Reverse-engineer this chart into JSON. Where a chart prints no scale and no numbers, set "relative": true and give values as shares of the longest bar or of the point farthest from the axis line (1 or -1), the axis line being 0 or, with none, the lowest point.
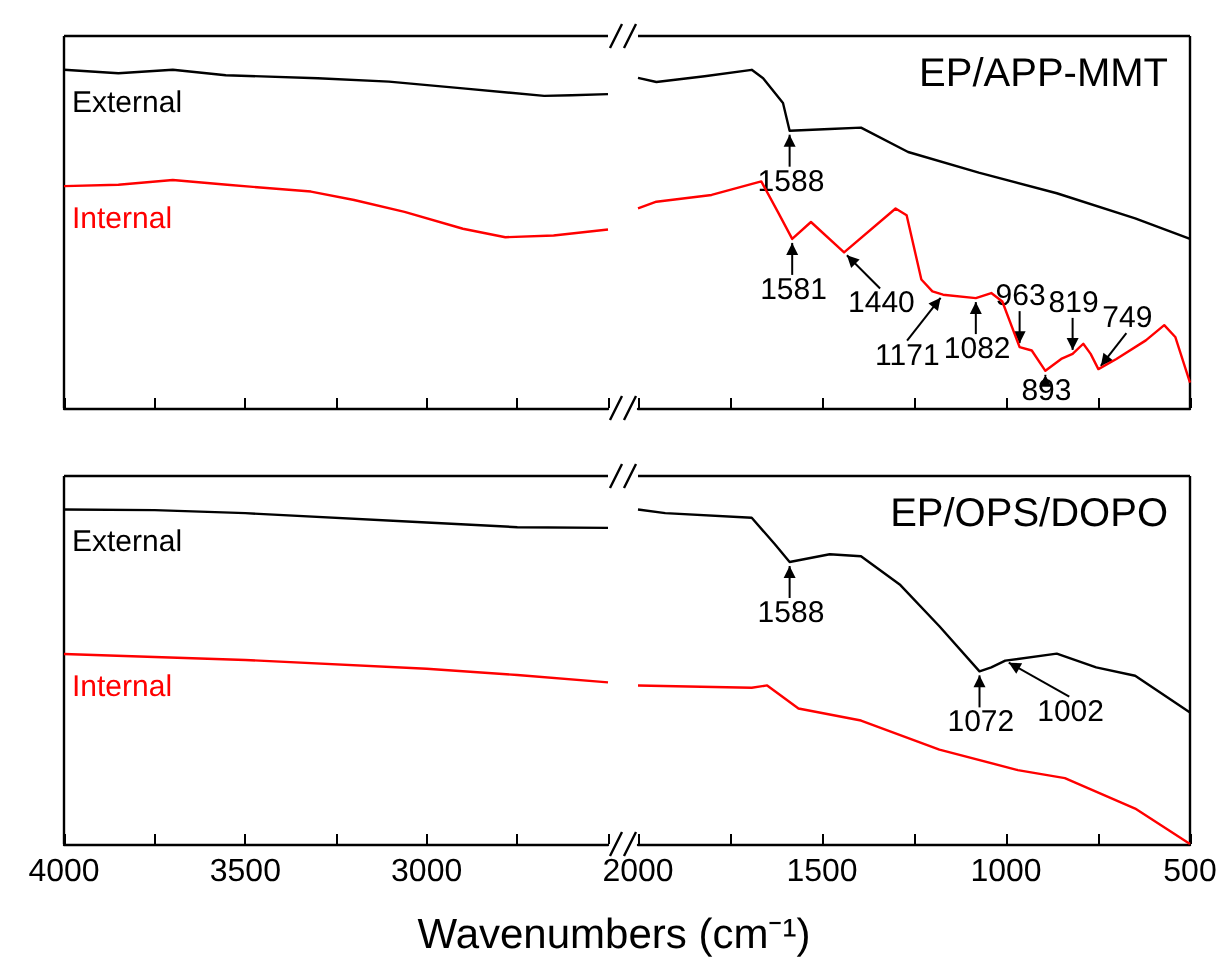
{
  "chart_data": [
    {
      "type": "line",
      "relative": true,
      "marker": "none",
      "line_style": "solid",
      "tick_labels": false,
      "xlim": [
        4000,
        2500
      ],
      "xticks": [
        4000,
        {
          "value": 3750,
          "label": null
        },
        3500,
        {
          "value": 3250,
          "label": null
        },
        3000,
        {
          "value": 2750,
          "label": null
        },
        {
          "value": 2500,
          "label": null
        }
      ],
      "series": [
        {
          "name": "External",
          "color": "#000000",
          "x": [
            4000,
            3850,
            3700,
            3554,
            3300,
            3104,
            2900,
            2676,
            2600,
            2500
          ],
          "values": [
            1.0,
            0.99,
            1.0,
            0.984,
            0.975,
            0.965,
            0.945,
            0.923,
            0.925,
            0.928
          ]
        },
        {
          "name": "Internal",
          "color": "#ff0000",
          "x": [
            4000,
            3850,
            3700,
            3550,
            3319,
            3200,
            3061,
            2900,
            2783,
            2650,
            2500
          ],
          "values": [
            0.656,
            0.66,
            0.674,
            0.66,
            0.64,
            0.615,
            0.58,
            0.53,
            0.505,
            0.51,
            0.528
          ]
        }
      ]
    },
    {
      "type": "line",
      "relative": true,
      "marker": "none",
      "line_style": "solid",
      "tick_labels": false,
      "title": "EP/APP-MMT",
      "xlim": [
        2000,
        500
      ],
      "xticks": [
        2000,
        {
          "value": 1750,
          "label": null
        },
        1500,
        {
          "value": 1250,
          "label": null
        },
        1000,
        {
          "value": 750,
          "label": null
        },
        500
      ],
      "series": [
        {
          "color": "#000000",
          "x": [
            2000,
            1950,
            1819,
            1691,
            1660,
            1606,
            1588,
            1479,
            1394,
            1266,
            1074,
            862,
            649,
            500
          ],
          "values": [
            0.976,
            0.964,
            0.981,
            1.0,
            0.975,
            0.902,
            0.82,
            0.825,
            0.829,
            0.757,
            0.696,
            0.635,
            0.561,
            0.5
          ]
        },
        {
          "color": "#ff0000",
          "x": [
            2000,
            1950,
            1800,
            1665,
            1620,
            1581,
            1530,
            1440,
            1300,
            1270,
            1230,
            1200,
            1171,
            1082,
            1040,
            1010,
            963,
            930,
            893,
            850,
            819,
            790,
            770,
            749,
            700,
            620,
            570,
            540,
            500
          ],
          "values": [
            0.59,
            0.61,
            0.63,
            0.67,
            0.58,
            0.5,
            0.55,
            0.46,
            0.59,
            0.57,
            0.38,
            0.345,
            0.335,
            0.325,
            0.34,
            0.315,
            0.18,
            0.17,
            0.11,
            0.145,
            0.16,
            0.19,
            0.16,
            0.115,
            0.145,
            0.2,
            0.245,
            0.21,
            0.075
          ]
        }
      ],
      "annotations": [
        {
          "text": "1588",
          "x": 1588,
          "y": 0.82
        },
        {
          "text": "1581",
          "x": 1581,
          "y": 0.5
        },
        {
          "text": "1440",
          "x": 1440,
          "y": 0.46
        },
        {
          "text": "1171",
          "x": 1171,
          "y": 0.335
        },
        {
          "text": "1082",
          "x": 1082,
          "y": 0.325
        },
        {
          "text": "963",
          "x": 963,
          "y": 0.18
        },
        {
          "text": "893",
          "x": 893,
          "y": 0.11
        },
        {
          "text": "819",
          "x": 819,
          "y": 0.16
        },
        {
          "text": "749",
          "x": 749,
          "y": 0.115
        }
      ]
    },
    {
      "type": "line",
      "relative": true,
      "marker": "none",
      "line_style": "solid",
      "tick_labels": "x",
      "xlim": [
        4000,
        2500
      ],
      "xticks": [
        4000,
        {
          "value": 3750,
          "label": null
        },
        3500,
        {
          "value": 3250,
          "label": null
        },
        3000,
        {
          "value": 2750,
          "label": null
        },
        {
          "value": 2500,
          "label": null
        }
      ],
      "series": [
        {
          "name": "External",
          "color": "#000000",
          "x": [
            4000,
            3750,
            3500,
            3000,
            2750,
            2500
          ],
          "values": [
            1.0,
            0.998,
            0.989,
            0.961,
            0.947,
            0.945
          ]
        },
        {
          "name": "Internal",
          "color": "#ff0000",
          "x": [
            4000,
            3750,
            3500,
            3000,
            2750,
            2500
          ],
          "values": [
            0.568,
            0.559,
            0.55,
            0.524,
            0.505,
            0.483
          ]
        }
      ]
    },
    {
      "type": "line",
      "relative": true,
      "marker": "none",
      "line_style": "solid",
      "tick_labels": "x",
      "title": "EP/OPS/DOPO",
      "xlabel": "Wavenumbers (cm⁻¹)",
      "xlim": [
        2000,
        500
      ],
      "xticks": [
        2000,
        {
          "value": 1750,
          "label": null
        },
        1500,
        {
          "value": 1250,
          "label": null
        },
        1000,
        {
          "value": 750,
          "label": null
        },
        500
      ],
      "series": [
        {
          "color": "#000000",
          "x": [
            2000,
            1926,
            1691,
            1628,
            1588,
            1479,
            1394,
            1287,
            1181,
            1072,
            1040,
            1002,
            862,
            755,
            649,
            500
          ],
          "values": [
            1.0,
            0.989,
            0.975,
            0.896,
            0.843,
            0.866,
            0.86,
            0.774,
            0.651,
            0.516,
            0.528,
            0.548,
            0.569,
            0.528,
            0.503,
            0.393
          ]
        },
        {
          "color": "#ff0000",
          "x": [
            2000,
            1691,
            1649,
            1564,
            1394,
            1181,
            968,
            840,
            649,
            500
          ],
          "values": [
            0.474,
            0.467,
            0.474,
            0.405,
            0.369,
            0.282,
            0.221,
            0.197,
            0.106,
            0.0
          ]
        }
      ],
      "annotations": [
        {
          "text": "1588",
          "x": 1588,
          "y": 0.843
        },
        {
          "text": "1072",
          "x": 1072,
          "y": 0.516
        },
        {
          "text": "1002",
          "x": 1002,
          "y": 0.548
        }
      ]
    }
  ]
}
